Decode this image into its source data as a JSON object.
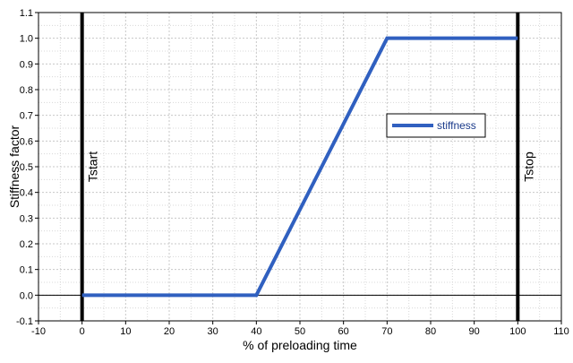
{
  "chart_data": {
    "type": "line",
    "xlabel": "% of preloading time",
    "ylabel": "Stiffness factor",
    "xlim": [
      -10,
      110
    ],
    "ylim": [
      -0.1,
      1.1
    ],
    "x_ticks": [
      -10,
      0,
      10,
      20,
      30,
      40,
      50,
      60,
      70,
      80,
      90,
      100,
      110
    ],
    "y_ticks": [
      -0.1,
      0.0,
      0.1,
      0.2,
      0.3,
      0.4,
      0.5,
      0.6,
      0.7,
      0.8,
      0.9,
      1.0,
      1.1
    ],
    "grid": true,
    "minor_grid": true,
    "series": [
      {
        "name": "stiffness",
        "color": "#3060c0",
        "x": [
          0,
          40,
          70,
          100
        ],
        "y": [
          0.0,
          0.0,
          1.0,
          1.0
        ]
      }
    ],
    "vertical_markers": [
      {
        "x": 0,
        "label": "Tstart",
        "color": "#000000"
      },
      {
        "x": 100,
        "label": "Tstop",
        "color": "#000000"
      }
    ],
    "zero_line": {
      "y": 0,
      "color": "#000000"
    },
    "legend": {
      "position": "right-middle"
    }
  }
}
